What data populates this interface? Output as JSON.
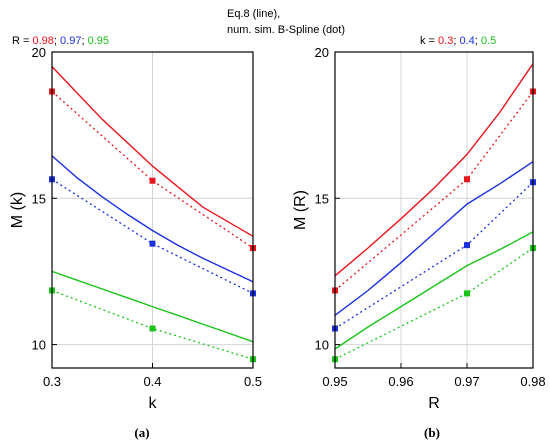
{
  "header": {
    "line1": "Eq.8 (line),",
    "line2": "num. sim. B-Spline (dot)"
  },
  "colors": {
    "red": "#e8141c",
    "blue": "#1a2fe0",
    "green": "#18c418",
    "grid": "#d4d4d4"
  },
  "chart_data": [
    {
      "type": "line",
      "panel_label": "(a)",
      "legend_prefix": "R = ",
      "legend_items": [
        {
          "text": "0.98",
          "color": "#e8141c"
        },
        {
          "text": "; ",
          "color": "#000000"
        },
        {
          "text": "0.97",
          "color": "#1a2fe0"
        },
        {
          "text": "; ",
          "color": "#000000"
        },
        {
          "text": "0.95",
          "color": "#18c418"
        }
      ],
      "xlabel": "k",
      "ylabel": "M (k)",
      "xlim": [
        0.3,
        0.5
      ],
      "ylim": [
        9.2,
        20
      ],
      "xticks": [
        0.3,
        0.4,
        0.5
      ],
      "xtick_labels": [
        "0.3",
        "0.4",
        "0.5"
      ],
      "yticks": [
        10,
        15,
        20
      ],
      "ytick_labels": [
        "10",
        "15",
        "20"
      ],
      "grid": true,
      "series": [
        {
          "name": "0.98",
          "color": "#e8141c",
          "line_x": [
            0.3,
            0.325,
            0.35,
            0.375,
            0.4,
            0.425,
            0.45,
            0.475,
            0.5
          ],
          "line_y": [
            19.5,
            18.6,
            17.7,
            16.9,
            16.1,
            15.4,
            14.7,
            14.2,
            13.7
          ],
          "dot_x": [
            0.3,
            0.4,
            0.5
          ],
          "dot_y": [
            18.65,
            15.6,
            13.3
          ]
        },
        {
          "name": "0.97",
          "color": "#1a2fe0",
          "line_x": [
            0.3,
            0.325,
            0.35,
            0.375,
            0.4,
            0.425,
            0.45,
            0.475,
            0.5
          ],
          "line_y": [
            16.45,
            15.7,
            15.05,
            14.45,
            13.9,
            13.4,
            12.95,
            12.55,
            12.15
          ],
          "dot_x": [
            0.3,
            0.4,
            0.5
          ],
          "dot_y": [
            15.65,
            13.45,
            11.75
          ]
        },
        {
          "name": "0.95",
          "color": "#18c418",
          "line_x": [
            0.3,
            0.325,
            0.35,
            0.375,
            0.4,
            0.425,
            0.45,
            0.475,
            0.5
          ],
          "line_y": [
            12.5,
            12.2,
            11.9,
            11.6,
            11.3,
            11.0,
            10.7,
            10.4,
            10.1
          ],
          "dot_x": [
            0.3,
            0.4,
            0.5
          ],
          "dot_y": [
            11.85,
            10.55,
            9.5
          ]
        }
      ]
    },
    {
      "type": "line",
      "panel_label": "(b)",
      "legend_prefix": "k = ",
      "legend_items": [
        {
          "text": "0.3",
          "color": "#e8141c"
        },
        {
          "text": "; ",
          "color": "#000000"
        },
        {
          "text": "0.4",
          "color": "#1a2fe0"
        },
        {
          "text": "; ",
          "color": "#000000"
        },
        {
          "text": "0.5",
          "color": "#18c418"
        }
      ],
      "xlabel": "R",
      "ylabel": "M (R)",
      "xlim": [
        0.95,
        0.98
      ],
      "ylim": [
        9.2,
        20
      ],
      "xticks": [
        0.95,
        0.96,
        0.97,
        0.98
      ],
      "xtick_labels": [
        "0.95",
        "0.96",
        "0.97",
        "0.98"
      ],
      "yticks": [
        10,
        15,
        20
      ],
      "ytick_labels": [
        "10",
        "15",
        "20"
      ],
      "grid": true,
      "series": [
        {
          "name": "0.3",
          "color": "#e8141c",
          "line_x": [
            0.95,
            0.955,
            0.96,
            0.965,
            0.97,
            0.975,
            0.98
          ],
          "line_y": [
            12.35,
            13.3,
            14.3,
            15.35,
            16.5,
            17.95,
            19.6
          ],
          "dot_x": [
            0.95,
            0.97,
            0.98
          ],
          "dot_y": [
            11.85,
            15.65,
            18.65
          ]
        },
        {
          "name": "0.4",
          "color": "#1a2fe0",
          "line_x": [
            0.95,
            0.955,
            0.96,
            0.965,
            0.97,
            0.975,
            0.98
          ],
          "line_y": [
            11.0,
            11.85,
            12.8,
            13.8,
            14.8,
            15.5,
            16.25
          ],
          "dot_x": [
            0.95,
            0.97,
            0.98
          ],
          "dot_y": [
            10.55,
            13.4,
            15.55
          ]
        },
        {
          "name": "0.5",
          "color": "#18c418",
          "line_x": [
            0.95,
            0.955,
            0.96,
            0.965,
            0.97,
            0.975,
            0.98
          ],
          "line_y": [
            9.85,
            10.6,
            11.3,
            12.0,
            12.7,
            13.25,
            13.85
          ],
          "dot_x": [
            0.95,
            0.97,
            0.98
          ],
          "dot_y": [
            9.5,
            11.75,
            13.3
          ]
        }
      ]
    }
  ]
}
